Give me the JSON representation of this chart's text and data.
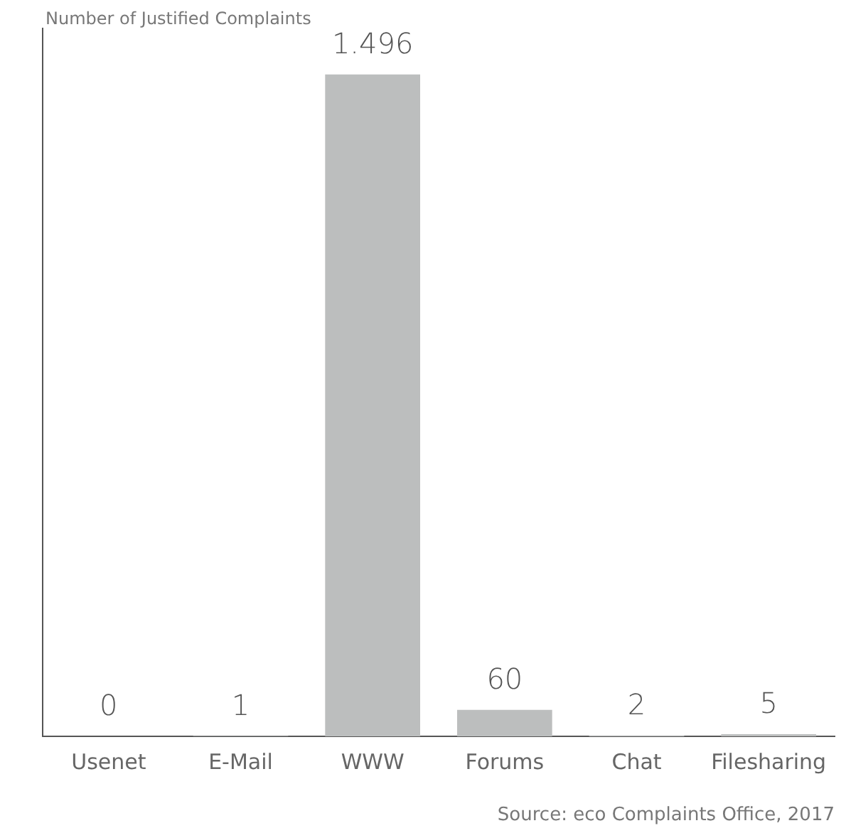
{
  "chart_data": {
    "type": "bar",
    "ylabel": "Number of Justified Complaints",
    "categories": [
      "Usenet",
      "E-Mail",
      "WWW",
      "Forums",
      "Chat",
      "Filesharing"
    ],
    "values": [
      0,
      1,
      1496,
      60,
      2,
      5
    ],
    "value_labels": [
      "0",
      "1",
      "1.496",
      "60",
      "2",
      "5"
    ],
    "color": "#bcbebe",
    "tick_labels": "x",
    "annotations": [
      "Source: eco Complaints Office, 2017"
    ]
  }
}
